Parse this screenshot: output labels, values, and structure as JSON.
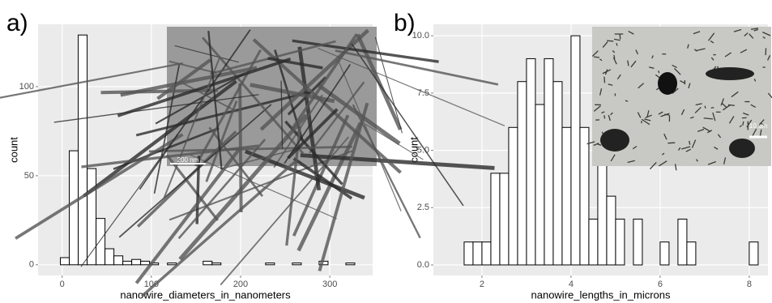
{
  "chart_data": [
    {
      "type": "histogram",
      "panel_label": "a)",
      "x_label": "nanowire_diameters_in_nanometers",
      "y_label": "count",
      "bins": [
        -2,
        8,
        18,
        28,
        38,
        48,
        58,
        68,
        78,
        88,
        98,
        108,
        118,
        128,
        138,
        148,
        158,
        168,
        178,
        188,
        198,
        208,
        218,
        228,
        238,
        248,
        258,
        268,
        278,
        288,
        298,
        308,
        318,
        328
      ],
      "values": [
        4,
        64,
        129,
        54,
        26,
        9,
        5,
        2,
        3,
        2,
        1,
        0,
        1,
        0,
        0,
        0,
        2,
        1,
        0,
        0,
        0,
        0,
        0,
        1,
        0,
        0,
        1,
        0,
        0,
        2,
        0,
        0,
        1
      ],
      "xlim": [
        -27,
        348
      ],
      "ylim": [
        -6,
        135
      ],
      "xticks": [
        0,
        100,
        200,
        300
      ],
      "yticks": [
        0,
        50,
        100
      ],
      "grid": true,
      "color": "#ffffff",
      "edge_color": "#000000",
      "annotations": [
        "200 nm"
      ]
    },
    {
      "type": "histogram",
      "panel_label": "b)",
      "x_label": "nanowire_lengths_in_microns",
      "y_label": "count",
      "bins": [
        1.6,
        1.8,
        2.0,
        2.2,
        2.4,
        2.6,
        2.8,
        3.0,
        3.2,
        3.4,
        3.6,
        3.8,
        4.0,
        4.2,
        4.4,
        4.6,
        4.8,
        5.0,
        5.2,
        5.4,
        5.6,
        5.8,
        6.0,
        6.2,
        6.4,
        6.6,
        6.8,
        7.0,
        7.2,
        7.4,
        7.6,
        7.8,
        8.0,
        8.2
      ],
      "values": [
        1,
        1,
        1,
        4,
        4,
        6,
        8,
        9,
        7,
        9,
        8,
        6,
        10,
        6,
        2,
        5,
        3,
        2,
        0,
        2,
        0,
        0,
        1,
        0,
        2,
        1,
        0,
        0,
        0,
        0,
        0,
        0,
        1
      ],
      "xlim": [
        0.91,
        8.42
      ],
      "ylim": [
        -0.46,
        10.5
      ],
      "xticks": [
        2,
        4,
        6,
        8
      ],
      "yticks": [
        {
          "value": 0,
          "label": "0.0"
        },
        {
          "value": 2.5,
          "label": "2.5"
        },
        {
          "value": 5,
          "label": "5.0"
        },
        {
          "value": 7.5,
          "label": "7.5"
        },
        {
          "value": 10,
          "label": "10.0"
        }
      ],
      "grid": true,
      "color": "#ffffff",
      "edge_color": "#000000",
      "annotations": [
        "10 um"
      ]
    }
  ]
}
